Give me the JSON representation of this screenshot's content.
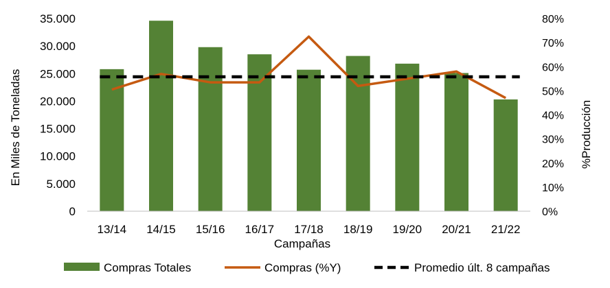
{
  "chart_data": {
    "type": "bar",
    "title": "",
    "xlabel": "Campañas",
    "ylabel": "En Miles de Toneladas",
    "y2label": "%Producción",
    "categories": [
      "13/14",
      "14/15",
      "15/16",
      "16/17",
      "17/18",
      "18/19",
      "19/20",
      "20/21",
      "21/22"
    ],
    "ylim": [
      0,
      35000
    ],
    "yticks": [
      "0",
      "5.000",
      "10.000",
      "15.000",
      "20.000",
      "25.000",
      "30.000",
      "35.000"
    ],
    "y2lim": [
      0,
      0.8
    ],
    "y2ticks": [
      "0%",
      "10%",
      "20%",
      "30%",
      "40%",
      "50%",
      "60%",
      "70%",
      "80%"
    ],
    "grid": false,
    "legend_position": "bottom",
    "series": [
      {
        "name": "Compras Totales",
        "kind": "bar",
        "axis": "left",
        "color": "#548235",
        "values": [
          25800,
          34600,
          29800,
          28500,
          25700,
          28200,
          26800,
          25100,
          20300
        ]
      },
      {
        "name": "Compras (%Y)",
        "kind": "line",
        "axis": "right",
        "color": "#C55A11",
        "values": [
          0.505,
          0.57,
          0.535,
          0.535,
          0.725,
          0.52,
          0.55,
          0.58,
          0.47
        ]
      },
      {
        "name": "Promedio últ. 8 campañas",
        "kind": "dashed-line",
        "axis": "right",
        "color": "#000000",
        "values": [
          0.558,
          0.558,
          0.558,
          0.558,
          0.558,
          0.558,
          0.558,
          0.558,
          0.558
        ]
      }
    ]
  }
}
